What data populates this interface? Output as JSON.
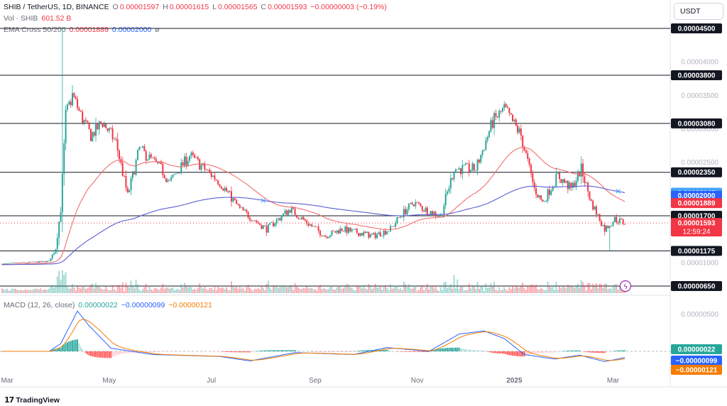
{
  "header": {
    "symbol": "SHIB / TetherUS, 1D, BINANCE",
    "o_label": "O",
    "o_value": "0.00001597",
    "h_label": "H",
    "h_value": "0.00001615",
    "l_label": "L",
    "l_value": "0.00001565",
    "c_label": "C",
    "c_value": "0.00001593",
    "change": "−0.00000003 (−0.19%)",
    "vol_label": "Vol · SHIB",
    "vol_value": "601.52 B",
    "ema_label": "EMA Cross 50/200",
    "ema50_value": "0.00001889",
    "ema200_value": "0.00002000",
    "ema_extra": "ø"
  },
  "currency_button": "USDT",
  "macd_header": {
    "label": "MACD (12, 26, close)",
    "histogram": "0.00000022",
    "macd": "−0.00000099",
    "signal": "−0.00000121"
  },
  "brand": "TradingView",
  "colors": {
    "up": "#26a69a",
    "down": "#f23645",
    "ema50": "#f26d6d",
    "ema200": "#5b5fd3",
    "macd": "#2962ff",
    "signal": "#f57c00",
    "level": "#131722"
  },
  "chart_data": {
    "type": "candlestick",
    "symbol": "SHIB/USDT",
    "interval": "1D",
    "y_axis_ticks": [
      "0.00004000",
      "0.00003500",
      "0.00003000",
      "0.00002500",
      "0.00002000",
      "0.00001500",
      "0.00001000",
      "0.00000500"
    ],
    "ylim": [
      5e-06,
      4.6e-05
    ],
    "x_axis_ticks": [
      "Mar",
      "May",
      "Jul",
      "Sep",
      "Nov",
      "2025",
      "Mar"
    ],
    "x_tick_days": [
      3,
      64,
      125,
      187,
      248,
      306,
      365
    ],
    "horizontal_levels": [
      {
        "label": "0.00004500",
        "value": 4.5e-05
      },
      {
        "label": "0.00003800",
        "value": 3.8e-05
      },
      {
        "label": "0.00003080",
        "value": 3.08e-05
      },
      {
        "label": "0.00002350",
        "value": 2.35e-05
      },
      {
        "label": "0.00001700",
        "value": 1.7e-05
      },
      {
        "label": "0.00001175",
        "value": 1.175e-05
      },
      {
        "label": "0.00000650",
        "value": 6.5e-06
      }
    ],
    "price_badges": [
      {
        "label": "0.00002045",
        "value": 2.045e-05,
        "color": "#42a5f5"
      },
      {
        "label": "0.00002000",
        "value": 2e-05,
        "color": "#2962ff"
      },
      {
        "label": "0.00001889",
        "value": 1.889e-05,
        "color": "#f23645"
      },
      {
        "label": "0.00001593",
        "value": 1.593e-05,
        "color": "#f23645",
        "sub": "12:59:24"
      }
    ],
    "close_anchors": [
      [
        0,
        9.8e-06
      ],
      [
        28,
        1.02e-05
      ],
      [
        32,
        1.22e-05
      ],
      [
        35,
        1.8e-05
      ],
      [
        38,
        3.2e-05
      ],
      [
        42,
        3.5e-05
      ],
      [
        47,
        3.2e-05
      ],
      [
        53,
        2.9e-05
      ],
      [
        60,
        3.1e-05
      ],
      [
        68,
        2.8e-05
      ],
      [
        75,
        2e-05
      ],
      [
        82,
        2.7e-05
      ],
      [
        95,
        2.4e-05
      ],
      [
        100,
        2.2e-05
      ],
      [
        112,
        2.6e-05
      ],
      [
        130,
        2.2e-05
      ],
      [
        142,
        1.8e-05
      ],
      [
        158,
        1.5e-05
      ],
      [
        172,
        1.8e-05
      ],
      [
        182,
        1.6e-05
      ],
      [
        193,
        1.4e-05
      ],
      [
        203,
        1.5e-05
      ],
      [
        222,
        1.4e-05
      ],
      [
        232,
        1.5e-05
      ],
      [
        238,
        1.7e-05
      ],
      [
        246,
        1.9e-05
      ],
      [
        252,
        1.8e-05
      ],
      [
        262,
        1.7e-05
      ],
      [
        270,
        2.4e-05
      ],
      [
        283,
        2.4e-05
      ],
      [
        293,
        3.1e-05
      ],
      [
        300,
        3.3e-05
      ],
      [
        310,
        2.9e-05
      ],
      [
        318,
        2.1e-05
      ],
      [
        323,
        1.9e-05
      ],
      [
        332,
        2.3e-05
      ],
      [
        340,
        2.1e-05
      ],
      [
        346,
        2.4e-05
      ],
      [
        352,
        1.9e-05
      ],
      [
        360,
        1.5e-05
      ],
      [
        366,
        1.65e-05
      ],
      [
        372,
        1.59e-05
      ]
    ],
    "extra_wicks": [
      {
        "day": 36,
        "high": 4.5e-05
      },
      {
        "day": 363,
        "low": 1.175e-05
      }
    ],
    "volume_spikes": [
      {
        "day": 36,
        "value": 4.0
      },
      {
        "day": 37,
        "value": 3.2
      },
      {
        "day": 270,
        "value": 3.2
      },
      {
        "day": 272,
        "value": 2.4
      }
    ],
    "ema_crossover_markers": [
      {
        "day": 156
      },
      {
        "day": 368
      }
    ],
    "macd": {
      "type": "macd",
      "zero_line": true,
      "anchors": [
        [
          0,
          0.0
        ],
        [
          28,
          0.0
        ],
        [
          35,
          1.2e-06
        ],
        [
          45,
          6.3e-06
        ],
        [
          52,
          4e-06
        ],
        [
          65,
          5e-07
        ],
        [
          90,
          -5e-07
        ],
        [
          130,
          -8e-07
        ],
        [
          148,
          -1.5e-06
        ],
        [
          175,
          -2e-07
        ],
        [
          210,
          -5e-07
        ],
        [
          230,
          6e-07
        ],
        [
          255,
          0.0
        ],
        [
          273,
          2.7e-06
        ],
        [
          288,
          3.2e-06
        ],
        [
          300,
          2e-06
        ],
        [
          312,
          -5e-07
        ],
        [
          330,
          -1.2e-06
        ],
        [
          345,
          -6e-07
        ],
        [
          360,
          -1.6e-06
        ],
        [
          372,
          -9.9e-07
        ]
      ],
      "y_axis_ticks": [
        "0.00000500"
      ]
    }
  }
}
